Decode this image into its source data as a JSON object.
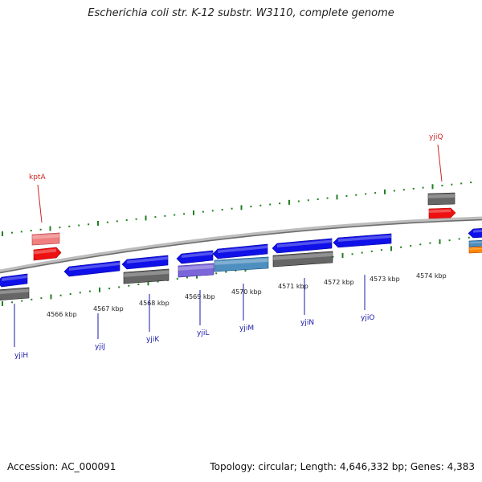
{
  "title": "Escherichia coli str. K-12 substr. W3110, complete genome",
  "footer": {
    "accession": "Accession: AC_000091",
    "summary": "Topology: circular; Length: 4,646,332 bp; Genes: 4,383"
  },
  "colors": {
    "minus_strand_gene": "#1010e8",
    "plus_strand_gene": "#ee1111",
    "gene_label_minus": "#1a1aa8",
    "gene_label_plus": "#cc2222",
    "tick": "#208020",
    "backbone": "#8a8a8a",
    "annotation_gray": "#666666",
    "annotation_lavender": "#7a66d8",
    "annotation_steel": "#4f8fc0",
    "annotation_salmon": "#f08080",
    "annotation_orange": "#ff8800"
  },
  "scale_labels": [
    "4566 kbp",
    "4567 kbp",
    "4568 kbp",
    "4569 kbp",
    "4570 kbp",
    "4571 kbp",
    "4572 kbp",
    "4573 kbp",
    "4574 kbp"
  ],
  "genes": [
    {
      "name": "yjiH",
      "strand": "minus"
    },
    {
      "name": "yjiJ",
      "strand": "minus"
    },
    {
      "name": "yjiK",
      "strand": "minus"
    },
    {
      "name": "yjiL",
      "strand": "minus"
    },
    {
      "name": "yjiM",
      "strand": "minus"
    },
    {
      "name": "yjiN",
      "strand": "minus"
    },
    {
      "name": "yjiO",
      "strand": "minus"
    },
    {
      "name": "kptA",
      "strand": "plus"
    },
    {
      "name": "yjiQ",
      "strand": "plus"
    }
  ]
}
